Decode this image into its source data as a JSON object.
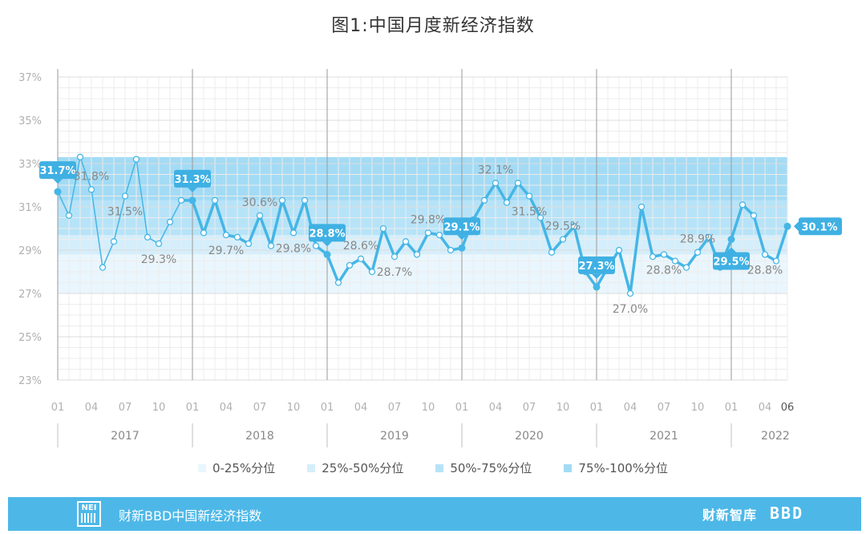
{
  "title": "图1:中国月度新经济指数",
  "colors": {
    "line": "#45b6e6",
    "label_bg": "#3fb0e3",
    "band_0_25": "#eaf6fd",
    "band_25_50": "#d5eefb",
    "band_50_75": "#b7e3f8",
    "band_75_100": "#a3dbf5"
  },
  "chart_data": {
    "type": "line",
    "ylim": [
      23,
      37
    ],
    "yticks": [
      "23%",
      "25%",
      "27%",
      "29%",
      "31%",
      "33%",
      "35%",
      "37%"
    ],
    "x_month_labels": [
      "01",
      "04",
      "07",
      "10",
      "01",
      "04",
      "07",
      "10",
      "01",
      "04",
      "07",
      "10",
      "01",
      "04",
      "07",
      "10",
      "01",
      "04",
      "07",
      "10",
      "01",
      "04",
      "06"
    ],
    "x_year_labels": [
      "2017",
      "2018",
      "2019",
      "2020",
      "2021",
      "2022"
    ],
    "bands": [
      {
        "name": "0-25%分位",
        "from": 27.0,
        "to": 28.8
      },
      {
        "name": "25%-50%分位",
        "from": 28.8,
        "to": 29.7
      },
      {
        "name": "50%-75%分位",
        "from": 29.7,
        "to": 31.3
      },
      {
        "name": "75%-100%分位",
        "from": 31.3,
        "to": 33.3
      }
    ],
    "series": [
      {
        "x": [
          "2017-01",
          "2017-02",
          "2017-03",
          "2017-04",
          "2017-05",
          "2017-06",
          "2017-07",
          "2017-08",
          "2017-09",
          "2017-10",
          "2017-11",
          "2017-12",
          "2018-01",
          "2018-02",
          "2018-03",
          "2018-04",
          "2018-05",
          "2018-06",
          "2018-07",
          "2018-08",
          "2018-09",
          "2018-10",
          "2018-11",
          "2018-12",
          "2019-01",
          "2019-02",
          "2019-03",
          "2019-04",
          "2019-05",
          "2019-06",
          "2019-07",
          "2019-08",
          "2019-09",
          "2019-10",
          "2019-11",
          "2019-12",
          "2020-01",
          "2020-02",
          "2020-03",
          "2020-04",
          "2020-05",
          "2020-06",
          "2020-07",
          "2020-08",
          "2020-09",
          "2020-10",
          "2020-11",
          "2020-12",
          "2021-01",
          "2021-02",
          "2021-03",
          "2021-04",
          "2021-05",
          "2021-06",
          "2021-07",
          "2021-08",
          "2021-09",
          "2021-10",
          "2021-11",
          "2021-12",
          "2022-01",
          "2022-02",
          "2022-03",
          "2022-04",
          "2022-05",
          "2022-06"
        ],
        "values": [
          31.7,
          30.6,
          33.3,
          31.8,
          28.2,
          29.4,
          31.5,
          33.2,
          29.6,
          29.3,
          30.3,
          31.3,
          31.3,
          29.8,
          31.3,
          29.7,
          29.6,
          29.3,
          30.6,
          29.2,
          31.3,
          29.8,
          31.3,
          29.2,
          28.8,
          27.5,
          28.3,
          28.6,
          28.0,
          30.0,
          28.7,
          29.4,
          28.8,
          29.8,
          29.7,
          29.0,
          29.1,
          30.4,
          31.3,
          32.1,
          31.2,
          32.1,
          31.5,
          30.5,
          28.9,
          29.5,
          30.1,
          28.0,
          27.3,
          28.2,
          29.0,
          27.0,
          31.0,
          28.7,
          28.8,
          28.5,
          28.2,
          28.9,
          29.6,
          28.2,
          29.5,
          31.1,
          30.6,
          28.8,
          28.5,
          30.1
        ]
      }
    ],
    "annotations": [
      {
        "x": "2017-01",
        "text": "31.7%",
        "style": "boxed",
        "pos": "above"
      },
      {
        "x": "2017-04",
        "text": "31.8%",
        "style": "plain",
        "pos": "above"
      },
      {
        "x": "2017-07",
        "text": "31.5%",
        "style": "plain",
        "pos": "below"
      },
      {
        "x": "2017-10",
        "text": "29.3%",
        "style": "plain",
        "pos": "below"
      },
      {
        "x": "2018-01",
        "text": "31.3%",
        "style": "boxed",
        "pos": "above"
      },
      {
        "x": "2018-04",
        "text": "29.7%",
        "style": "plain",
        "pos": "below"
      },
      {
        "x": "2018-07",
        "text": "30.6%",
        "style": "plain",
        "pos": "above"
      },
      {
        "x": "2018-10",
        "text": "29.8%",
        "style": "plain",
        "pos": "below"
      },
      {
        "x": "2019-01",
        "text": "28.8%",
        "style": "boxed",
        "pos": "above"
      },
      {
        "x": "2019-04",
        "text": "28.6%",
        "style": "plain",
        "pos": "above"
      },
      {
        "x": "2019-07",
        "text": "28.7%",
        "style": "plain",
        "pos": "below"
      },
      {
        "x": "2019-10",
        "text": "29.8%",
        "style": "plain",
        "pos": "above"
      },
      {
        "x": "2020-01",
        "text": "29.1%",
        "style": "boxed",
        "pos": "above"
      },
      {
        "x": "2020-04",
        "text": "32.1%",
        "style": "plain",
        "pos": "above"
      },
      {
        "x": "2020-07",
        "text": "31.5%",
        "style": "plain",
        "pos": "below"
      },
      {
        "x": "2020-10",
        "text": "29.5%",
        "style": "plain",
        "pos": "above"
      },
      {
        "x": "2021-01",
        "text": "27.3%",
        "style": "boxed",
        "pos": "above"
      },
      {
        "x": "2021-04",
        "text": "27.0%",
        "style": "plain",
        "pos": "below"
      },
      {
        "x": "2021-07",
        "text": "28.8%",
        "style": "plain",
        "pos": "below"
      },
      {
        "x": "2021-10",
        "text": "28.9%",
        "style": "plain",
        "pos": "above"
      },
      {
        "x": "2022-01",
        "text": "29.5%",
        "style": "boxed",
        "pos": "below"
      },
      {
        "x": "2022-04",
        "text": "28.8%",
        "style": "plain",
        "pos": "below"
      },
      {
        "x": "2022-06",
        "text": "30.1%",
        "style": "boxed",
        "pos": "right"
      }
    ],
    "grid": true
  },
  "legend": {
    "items": [
      "0-25%分位",
      "25%-50%分位",
      "50%-75%分位",
      "75%-100%分位"
    ]
  },
  "footer": {
    "logo_text": "NEI",
    "label": "财新BBD中国新经济指数",
    "caixin_logo": "财新智库",
    "bbd_logo": "BBD"
  }
}
